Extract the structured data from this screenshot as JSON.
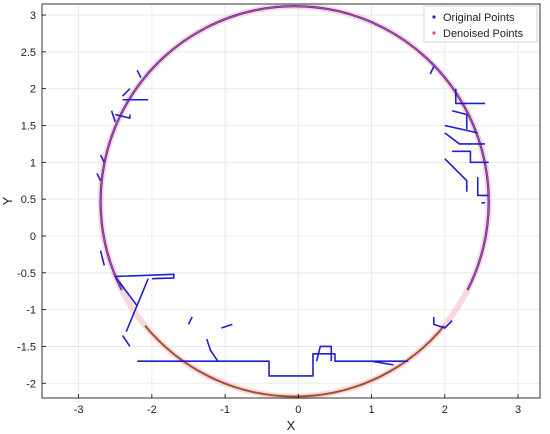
{
  "chart_data": {
    "type": "scatter",
    "title": "",
    "xlabel": "X",
    "ylabel": "Y",
    "xlim": [
      -3.5,
      3.3
    ],
    "ylim": [
      -2.2,
      3.15
    ],
    "xticks": [
      -3,
      -2,
      -1,
      0,
      1,
      2,
      3
    ],
    "yticks": [
      -2,
      -1.5,
      -1,
      -0.5,
      0,
      0.5,
      1,
      1.5,
      2,
      2.5,
      3
    ],
    "grid": true,
    "legend_position": "top-right",
    "circle": {
      "cx": -0.05,
      "cy": 0.47,
      "r": 2.65
    },
    "colors": {
      "original": "#1f1fcc",
      "denoised": "#e8506a",
      "floor_arc": "#a0522d"
    },
    "series": [
      {
        "name": "Original Points",
        "color": "#1f1fcc",
        "polylines": [
          [
            [
              -2.2,
              -1.7
            ],
            [
              -0.4,
              -1.7
            ],
            [
              -0.4,
              -1.9
            ],
            [
              0.2,
              -1.9
            ],
            [
              0.2,
              -1.6
            ],
            [
              0.5,
              -1.6
            ],
            [
              0.5,
              -1.7
            ],
            [
              1.5,
              -1.7
            ]
          ],
          [
            [
              -1.25,
              -1.4
            ],
            [
              -1.2,
              -1.55
            ],
            [
              -1.1,
              -1.7
            ]
          ],
          [
            [
              0.25,
              -1.7
            ],
            [
              0.3,
              -1.5
            ],
            [
              0.45,
              -1.5
            ],
            [
              0.45,
              -1.7
            ]
          ],
          [
            [
              -2.5,
              -0.55
            ],
            [
              -1.7,
              -0.52
            ],
            [
              -1.7,
              -0.57
            ],
            [
              -2.0,
              -0.58
            ]
          ],
          [
            [
              -2.5,
              -0.55
            ],
            [
              -2.2,
              -0.95
            ]
          ],
          [
            [
              -2.05,
              -0.58
            ],
            [
              -2.35,
              -1.3
            ]
          ],
          [
            [
              1.85,
              -1.1
            ],
            [
              1.85,
              -1.2
            ],
            [
              2.0,
              -1.25
            ],
            [
              2.1,
              -1.15
            ]
          ],
          [
            [
              2.15,
              2.0
            ],
            [
              2.15,
              1.8
            ],
            [
              2.55,
              1.8
            ]
          ],
          [
            [
              2.1,
              1.7
            ],
            [
              2.3,
              1.65
            ],
            [
              2.3,
              1.45
            ]
          ],
          [
            [
              2.0,
              1.5
            ],
            [
              2.45,
              1.4
            ]
          ],
          [
            [
              2.0,
              1.4
            ],
            [
              2.2,
              1.25
            ],
            [
              2.55,
              1.25
            ]
          ],
          [
            [
              2.1,
              1.15
            ],
            [
              2.35,
              1.15
            ],
            [
              2.35,
              1.0
            ],
            [
              2.6,
              1.0
            ]
          ],
          [
            [
              2.0,
              1.05
            ],
            [
              2.3,
              0.75
            ],
            [
              2.3,
              0.6
            ]
          ],
          [
            [
              2.45,
              0.8
            ],
            [
              2.45,
              0.55
            ],
            [
              2.6,
              0.55
            ]
          ],
          [
            [
              2.5,
              0.45
            ],
            [
              2.55,
              0.45
            ]
          ],
          [
            [
              -2.2,
              2.25
            ],
            [
              -2.15,
              2.15
            ]
          ],
          [
            [
              -2.4,
              1.85
            ],
            [
              -2.2,
              1.85
            ],
            [
              -2.05,
              1.85
            ]
          ],
          [
            [
              -2.4,
              1.9
            ],
            [
              -2.3,
              2.0
            ]
          ],
          [
            [
              -2.5,
              1.65
            ],
            [
              -2.3,
              1.6
            ],
            [
              -2.3,
              1.65
            ]
          ],
          [
            [
              -2.55,
              1.7
            ],
            [
              -2.5,
              1.55
            ]
          ],
          [
            [
              -2.7,
              1.1
            ],
            [
              -2.65,
              1.0
            ]
          ],
          [
            [
              -2.75,
              0.85
            ],
            [
              -2.7,
              0.75
            ]
          ],
          [
            [
              -2.7,
              -0.2
            ],
            [
              -2.65,
              -0.4
            ]
          ],
          [
            [
              -2.4,
              -1.35
            ],
            [
              -2.3,
              -1.5
            ]
          ],
          [
            [
              -0.9,
              -1.2
            ],
            [
              -1.05,
              -1.25
            ]
          ],
          [
            [
              -1.5,
              -1.2
            ],
            [
              -1.45,
              -1.1
            ]
          ],
          [
            [
              1.0,
              -1.7
            ],
            [
              1.3,
              -1.75
            ]
          ],
          [
            [
              1.8,
              2.2
            ],
            [
              1.85,
              2.3
            ]
          ]
        ]
      },
      {
        "name": "Denoised Points",
        "color": "#e8506a",
        "polylines": []
      }
    ]
  },
  "legend": {
    "original_label": "Original Points",
    "denoised_label": "Denoised Points"
  }
}
